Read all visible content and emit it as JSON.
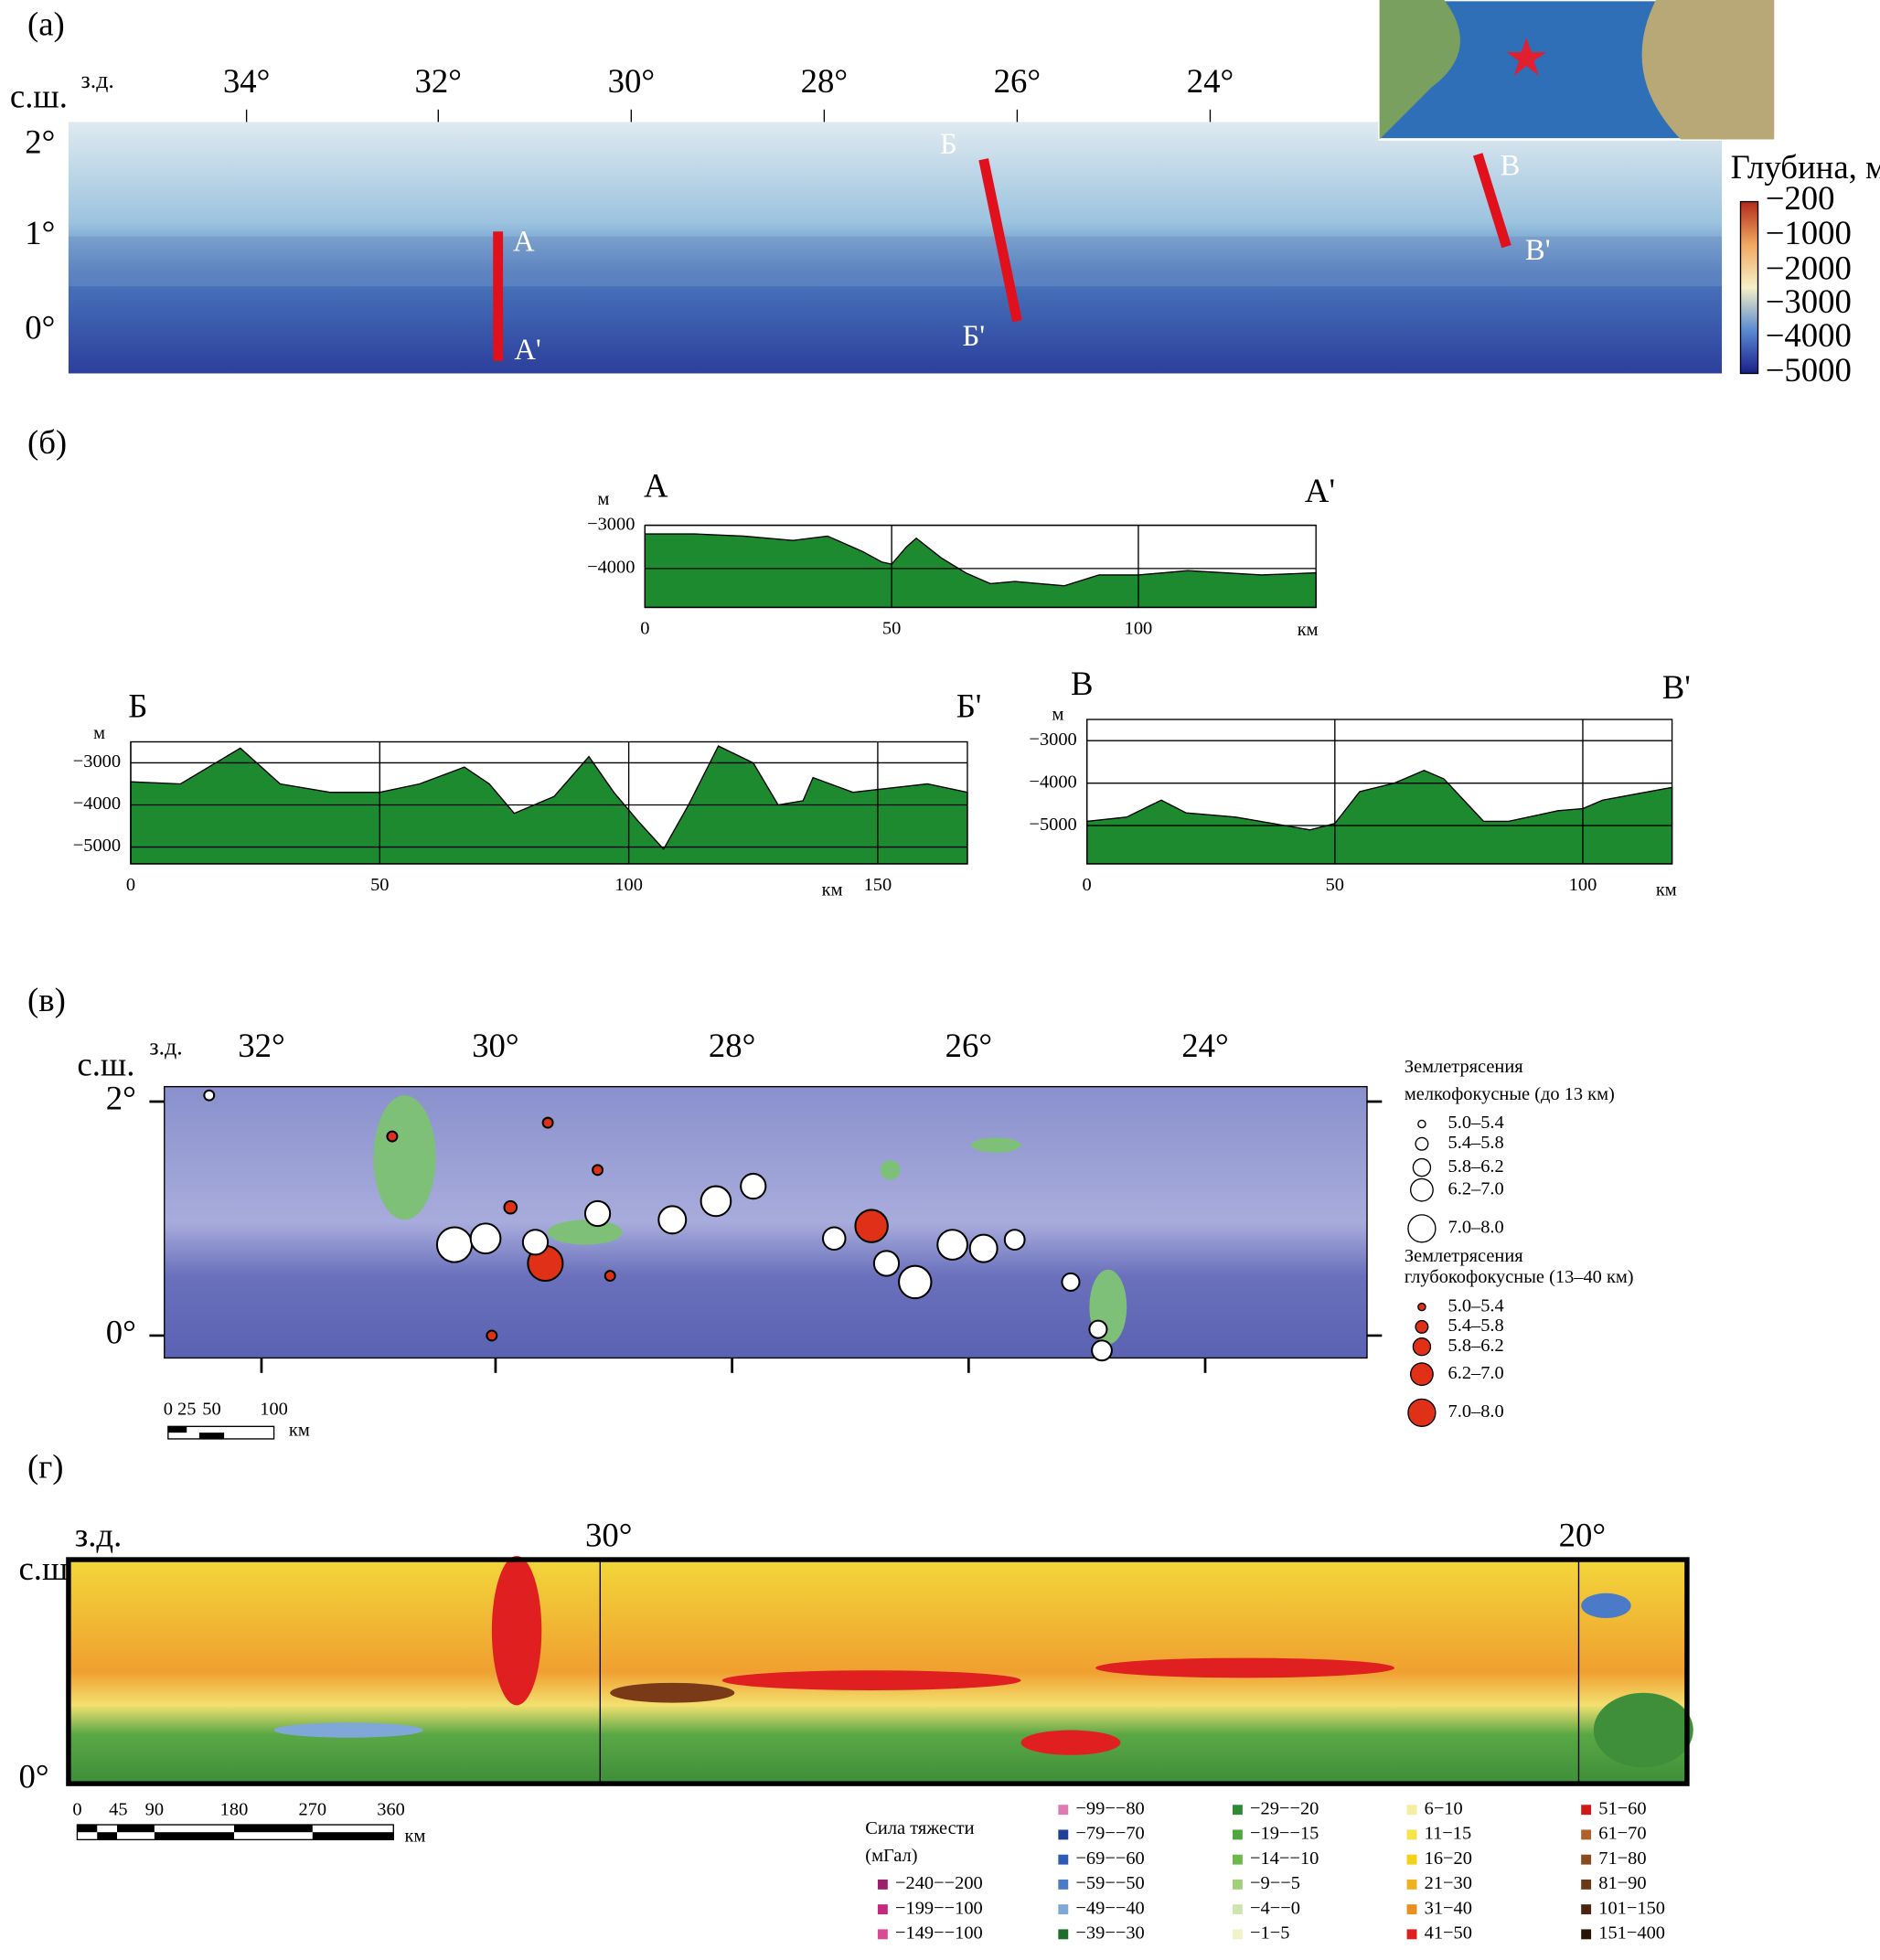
{
  "panel_a": {
    "label": "(а)",
    "corner_lat": "с.ш.",
    "corner_lon": "з.д.",
    "lon_labels": [
      "34°",
      "32°",
      "30°",
      "28°",
      "26°",
      "24°"
    ],
    "lat_labels": [
      "2°",
      "1°",
      "0°"
    ],
    "section_labels": [
      "А",
      "А'",
      "Б",
      "Б'",
      "В",
      "В'"
    ],
    "colorbar_title": "Глубина, м",
    "colorbar_labels": [
      "−200",
      "−1000",
      "−2000",
      "−3000",
      "−4000",
      "−5000"
    ]
  },
  "panel_b": {
    "label": "(б)"
  },
  "chart_data": [
    {
      "type": "area",
      "start_label": "А",
      "end_label": "А'",
      "y_unit": "м",
      "x_unit": "км",
      "color": "#1d8a2f",
      "x": [
        0,
        10,
        20,
        30,
        37,
        44,
        48,
        50,
        53,
        55,
        60,
        65,
        70,
        75,
        85,
        92,
        100,
        110,
        125,
        136
      ],
      "values": [
        -3200,
        -3200,
        -3250,
        -3350,
        -3250,
        -3600,
        -3850,
        -3900,
        -3500,
        -3300,
        -3750,
        -4100,
        -4350,
        -4300,
        -4400,
        -4150,
        -4150,
        -4050,
        -4150,
        -4100
      ],
      "xlim": [
        0,
        136
      ],
      "ylim": [
        -4900,
        -3000
      ],
      "xticks": [
        0,
        50,
        100
      ],
      "yticks": [
        {
          "value": -3000,
          "label": "−3000"
        },
        {
          "value": -4000,
          "label": "−4000"
        }
      ]
    },
    {
      "type": "area",
      "start_label": "Б",
      "end_label": "Б'",
      "y_unit": "м",
      "x_unit": "км",
      "color": "#1d8a2f",
      "x": [
        0,
        10,
        22,
        30,
        40,
        50,
        58,
        67,
        72,
        77,
        85,
        92,
        97,
        102,
        107,
        112,
        118,
        125,
        130,
        135,
        137,
        145,
        160,
        168
      ],
      "values": [
        -3450,
        -3500,
        -2650,
        -3500,
        -3700,
        -3700,
        -3500,
        -3100,
        -3500,
        -4200,
        -3800,
        -2850,
        -3700,
        -4400,
        -5050,
        -4000,
        -2600,
        -3000,
        -4000,
        -3900,
        -3350,
        -3700,
        -3500,
        -3700
      ],
      "xlim": [
        0,
        168
      ],
      "ylim": [
        -5400,
        -2500
      ],
      "xticks": [
        0,
        50,
        100,
        150
      ],
      "yticks": [
        {
          "value": -3000,
          "label": "−3000"
        },
        {
          "value": -4000,
          "label": "−4000"
        },
        {
          "value": -5000,
          "label": "−5000"
        }
      ]
    },
    {
      "type": "area",
      "start_label": "В",
      "end_label": "В'",
      "y_unit": "м",
      "x_unit": "км",
      "color": "#1d8a2f",
      "x": [
        0,
        8,
        15,
        20,
        30,
        40,
        45,
        50,
        55,
        62,
        68,
        72,
        80,
        85,
        95,
        100,
        104,
        118
      ],
      "values": [
        -4900,
        -4800,
        -4400,
        -4700,
        -4800,
        -5000,
        -5100,
        -4950,
        -4200,
        -4000,
        -3700,
        -3900,
        -4900,
        -4900,
        -4650,
        -4600,
        -4400,
        -4100
      ],
      "xlim": [
        0,
        118
      ],
      "ylim": [
        -5900,
        -2500
      ],
      "xticks": [
        0,
        50,
        100
      ],
      "yticks": [
        {
          "value": -3000,
          "label": "−3000"
        },
        {
          "value": -4000,
          "label": "−4000"
        },
        {
          "value": -5000,
          "label": "−5000"
        }
      ]
    }
  ],
  "panel_c": {
    "label": "(в)",
    "corner_lat": "с.ш.",
    "corner_lon": "з.д.",
    "lon_labels": [
      "32°",
      "30°",
      "28°",
      "26°",
      "24°"
    ],
    "lat_labels": [
      "2°",
      "0°"
    ],
    "legend_shallow_title": [
      "Землетрясения",
      "мелкофокусные (до 13 км)"
    ],
    "legend_deep_title": [
      "Землетрясения",
      "глубокофокусные (13–40 км)"
    ],
    "magnitude_labels": [
      "5.0–5.4",
      "5.4–5.8",
      "5.8–6.2",
      "6.2–7.0",
      "7.0–8.0"
    ],
    "scale_labels": [
      "0",
      "25",
      "50",
      "100"
    ],
    "scale_unit": "км"
  },
  "panel_d": {
    "label": "(г)",
    "corner_lat": "с.ш",
    "corner_lon": "з.д.",
    "lon_labels": [
      "30°",
      "20°"
    ],
    "lat_labels": [
      "0°"
    ],
    "scale_labels": [
      "0",
      "45",
      "90",
      "180",
      "270",
      "360"
    ],
    "scale_unit": "км",
    "legend_title": [
      "Сила тяжести",
      "(мГал)"
    ],
    "legend_items": [
      {
        "label": "−240−−200",
        "color": "#9b1f6b"
      },
      {
        "label": "−199−−100",
        "color": "#c2287e"
      },
      {
        "label": "−149−−100",
        "color": "#d84a95"
      },
      {
        "label": "−99−−80",
        "color": "#e07ab0"
      },
      {
        "label": "−79−−70",
        "color": "#1f3f9a"
      },
      {
        "label": "−69−−60",
        "color": "#2e5bb5"
      },
      {
        "label": "−59−−50",
        "color": "#4a7ac8"
      },
      {
        "label": "−49−−40",
        "color": "#7fa8d8"
      },
      {
        "label": "−39−−30",
        "color": "#1e6e2a"
      },
      {
        "label": "−29−−20",
        "color": "#2e8b35"
      },
      {
        "label": "−19−−15",
        "color": "#4fa83f"
      },
      {
        "label": "−14−−10",
        "color": "#6db84a"
      },
      {
        "label": "−9−−5",
        "color": "#9fd07a"
      },
      {
        "label": "−4−−0",
        "color": "#cde5b0"
      },
      {
        "label": "−1−5",
        "color": "#f2f2c8"
      },
      {
        "label": "6−10",
        "color": "#f5eda0"
      },
      {
        "label": "11−15",
        "color": "#f5e44a"
      },
      {
        "label": "16−20",
        "color": "#f5d21a"
      },
      {
        "label": "21−30",
        "color": "#f0b020"
      },
      {
        "label": "31−40",
        "color": "#e89020"
      },
      {
        "label": "41−50",
        "color": "#e02020"
      },
      {
        "label": "51−60",
        "color": "#d01818"
      },
      {
        "label": "61−70",
        "color": "#b0602a"
      },
      {
        "label": "71−80",
        "color": "#8a4a20"
      },
      {
        "label": "81−90",
        "color": "#6a3a18"
      },
      {
        "label": "101−150",
        "color": "#4a2410"
      },
      {
        "label": "151−400",
        "color": "#2a1408"
      }
    ]
  }
}
